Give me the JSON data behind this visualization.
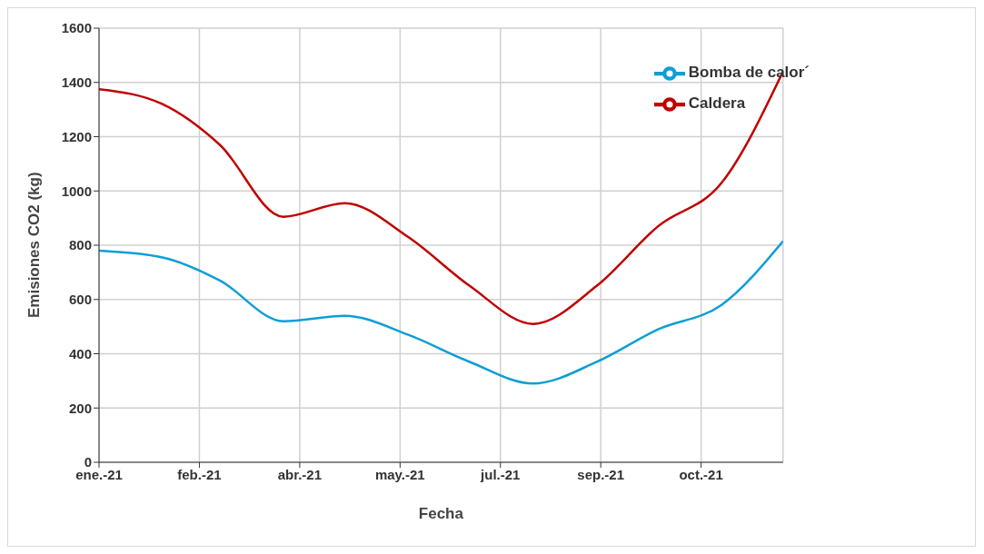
{
  "chart_data": {
    "type": "line",
    "xlabel": "Fecha",
    "ylabel": "Emisiones CO2 (kg)",
    "x": [
      "2021-01-01",
      "2021-02-01",
      "2021-03-01",
      "2021-04-01",
      "2021-05-01",
      "2021-06-01",
      "2021-07-01",
      "2021-08-01",
      "2021-09-01",
      "2021-10-01",
      "2021-11-01",
      "2021-12-01"
    ],
    "series": [
      {
        "name": "Bomba de calor´",
        "color": "#0f9ed5",
        "values": [
          780,
          755,
          670,
          520,
          540,
          470,
          370,
          290,
          370,
          490,
          580,
          815
        ]
      },
      {
        "name": "Caldera",
        "color": "#c00000",
        "values": [
          1375,
          1320,
          1170,
          905,
          955,
          830,
          650,
          510,
          650,
          870,
          1030,
          1440
        ]
      }
    ],
    "xlim": [
      "2021-01-01",
      "2021-12-01"
    ],
    "xticks": [
      {
        "value": "2021-01-01",
        "label": "ene.-21"
      },
      {
        "value": "2021-02-19",
        "label": "feb.-21"
      },
      {
        "value": "2021-04-09",
        "label": "abr.-21"
      },
      {
        "value": "2021-05-28",
        "label": "may.-21"
      },
      {
        "value": "2021-07-16",
        "label": "jul.-21"
      },
      {
        "value": "2021-09-03",
        "label": "sep.-21"
      },
      {
        "value": "2021-10-22",
        "label": "oct.-21"
      }
    ],
    "ylim": [
      0,
      1600
    ],
    "yticks": [
      0,
      200,
      400,
      600,
      800,
      1000,
      1200,
      1400,
      1600
    ],
    "grid": true,
    "legend": "top right",
    "marker": "none",
    "line_style": "solid"
  }
}
